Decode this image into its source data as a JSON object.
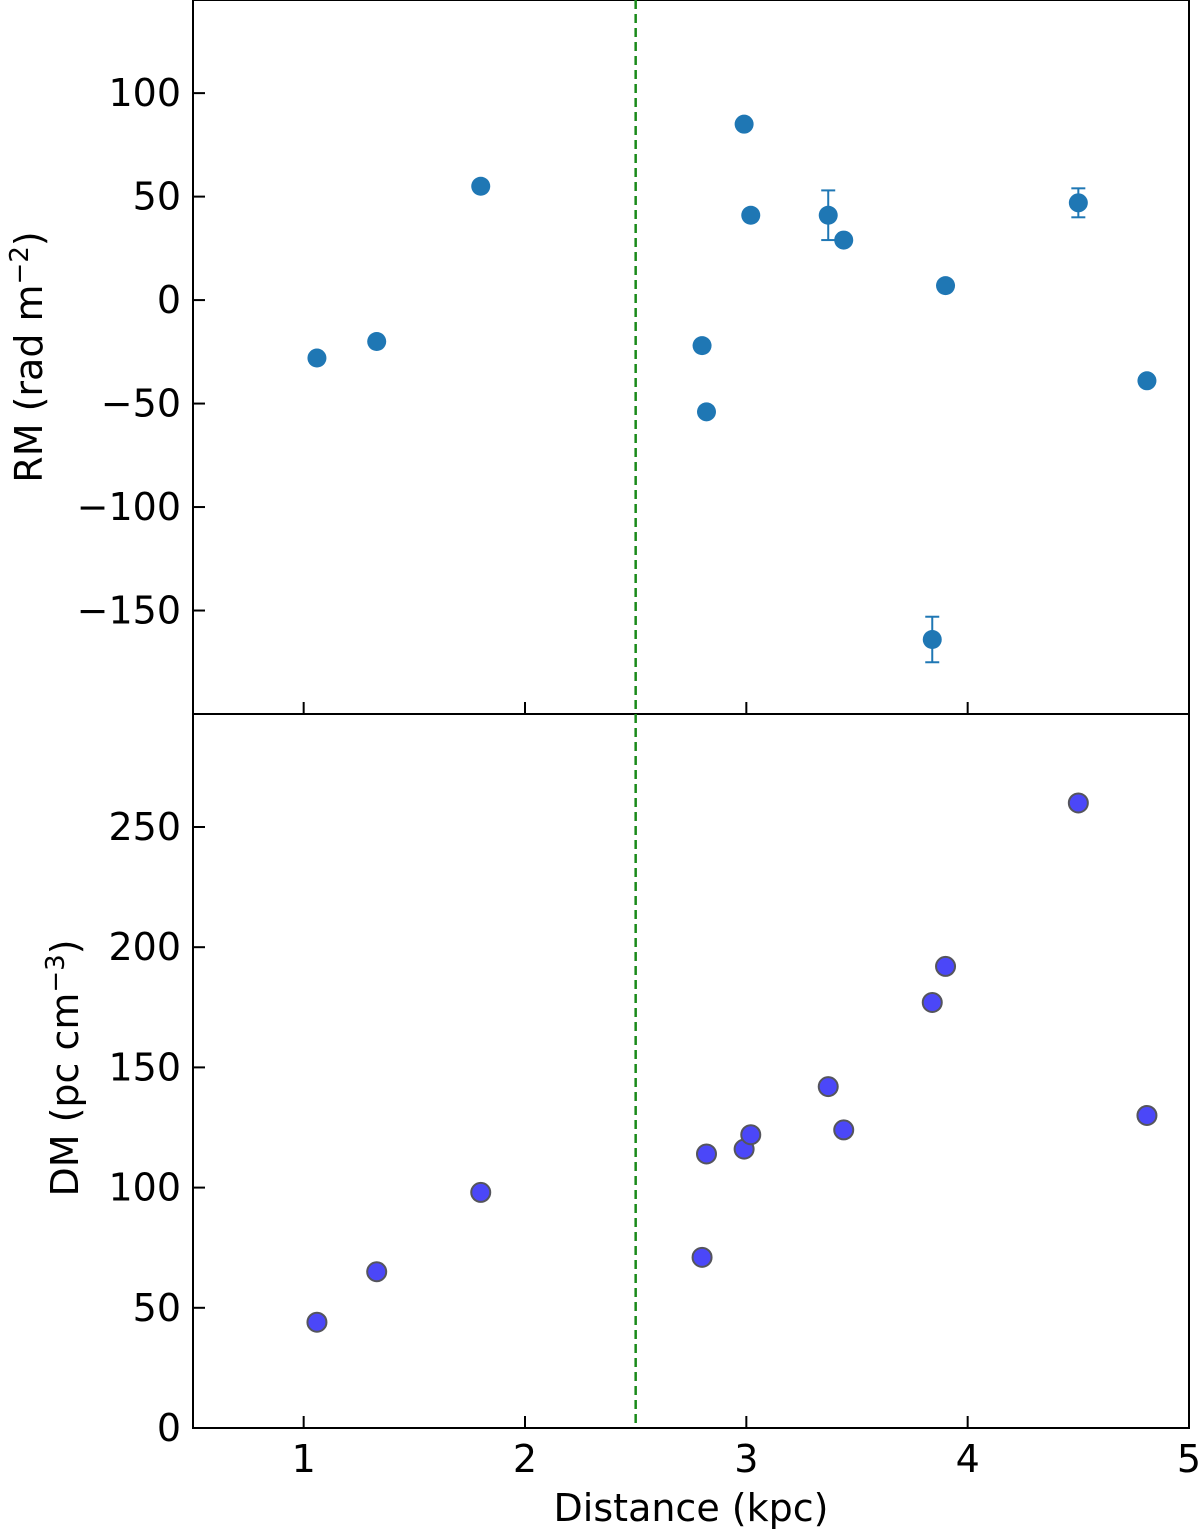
{
  "chart_data": [
    {
      "type": "scatter",
      "title": "",
      "xlabel": "",
      "ylabel": "RM (rad m",
      "ylabel_sup": "−2",
      "ylabel_close": ")",
      "xlim": [
        0.5,
        5.0
      ],
      "ylim": [
        -200,
        145
      ],
      "xticks": [
        1,
        2,
        3,
        4,
        5
      ],
      "xtick_labels_visible": false,
      "yticks": [
        -150,
        -100,
        -50,
        0,
        50,
        100
      ],
      "ytick_labels": [
        "−150",
        "−100",
        "−50",
        "0",
        "50",
        "100"
      ],
      "grid": false,
      "marker_color": "#1f77b4",
      "points": [
        {
          "x": 1.06,
          "y": -28
        },
        {
          "x": 1.33,
          "y": -20
        },
        {
          "x": 1.8,
          "y": 55
        },
        {
          "x": 2.8,
          "y": -22
        },
        {
          "x": 2.82,
          "y": -54
        },
        {
          "x": 2.99,
          "y": 85
        },
        {
          "x": 3.02,
          "y": 41
        },
        {
          "x": 3.37,
          "y": 41,
          "yerr": 12
        },
        {
          "x": 3.44,
          "y": 29
        },
        {
          "x": 3.84,
          "y": -164,
          "yerr": 11
        },
        {
          "x": 3.9,
          "y": 7
        },
        {
          "x": 4.5,
          "y": 47,
          "yerr": 7
        },
        {
          "x": 4.81,
          "y": -39
        }
      ]
    },
    {
      "type": "scatter",
      "title": "",
      "xlabel": "Distance (kpc)",
      "ylabel": "DM (pc cm",
      "ylabel_sup": "−3",
      "ylabel_close": ")",
      "xlim": [
        0.5,
        5.0
      ],
      "ylim": [
        0,
        297
      ],
      "xticks": [
        1,
        2,
        3,
        4,
        5
      ],
      "xtick_labels": [
        "1",
        "2",
        "3",
        "4",
        "5"
      ],
      "yticks": [
        0,
        50,
        100,
        150,
        200,
        250
      ],
      "ytick_labels": [
        "0",
        "50",
        "100",
        "150",
        "200",
        "250"
      ],
      "grid": false,
      "marker_color": "#4b47f8",
      "marker_edge": "#55555c",
      "points": [
        {
          "x": 1.06,
          "y": 44
        },
        {
          "x": 1.33,
          "y": 65
        },
        {
          "x": 1.8,
          "y": 98
        },
        {
          "x": 2.8,
          "y": 71
        },
        {
          "x": 2.82,
          "y": 114
        },
        {
          "x": 2.99,
          "y": 116
        },
        {
          "x": 3.02,
          "y": 122
        },
        {
          "x": 3.37,
          "y": 142
        },
        {
          "x": 3.44,
          "y": 124
        },
        {
          "x": 3.84,
          "y": 177
        },
        {
          "x": 3.9,
          "y": 192
        },
        {
          "x": 4.5,
          "y": 260
        },
        {
          "x": 4.81,
          "y": 130
        }
      ]
    }
  ],
  "reference_line": {
    "x": 2.5,
    "color": "#1a8a1a",
    "style": "dashed"
  }
}
